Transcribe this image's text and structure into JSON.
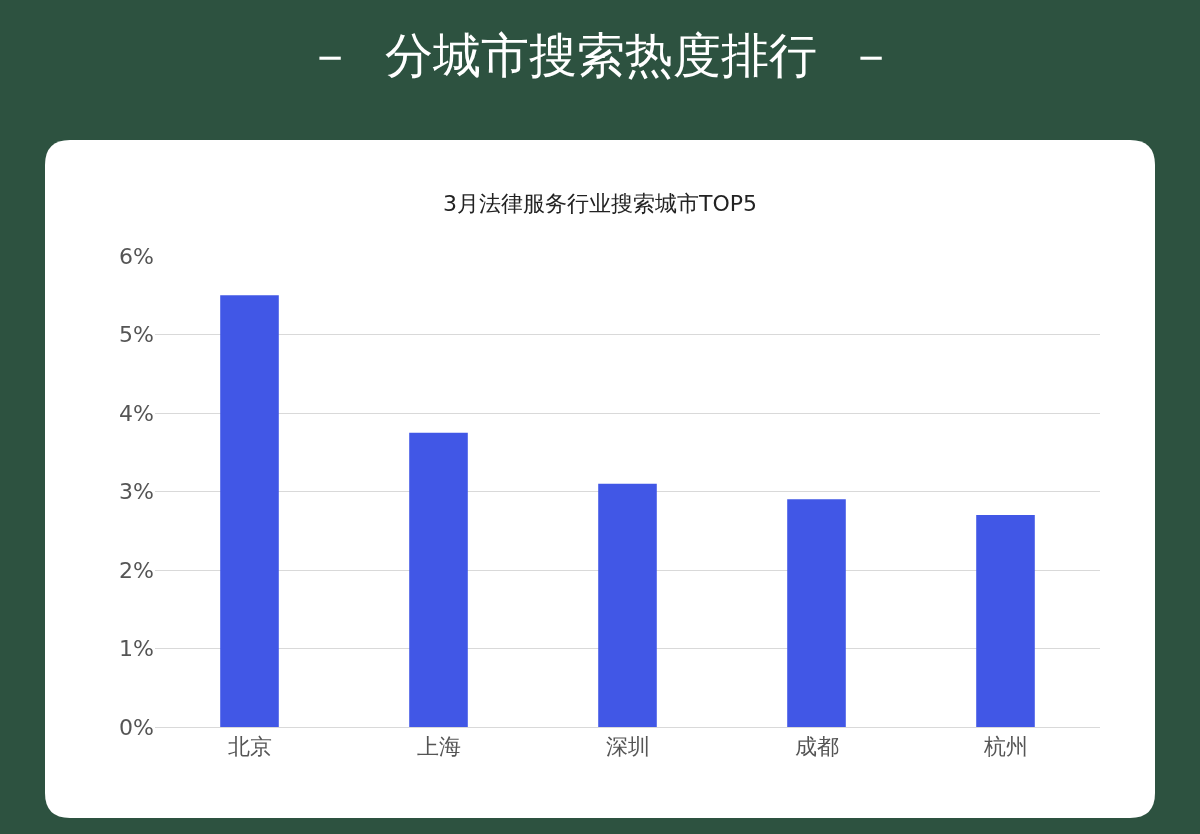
{
  "chart_data": {
    "type": "bar",
    "title": "－  分城市搜索热度排行  －",
    "subtitle": "3月法律服务行业搜索城市TOP5",
    "categories": [
      "北京",
      "上海",
      "深圳",
      "成都",
      "杭州"
    ],
    "values": [
      5.5,
      3.75,
      3.1,
      2.9,
      2.7
    ],
    "color": "#4157e6",
    "ylim": [
      0,
      6
    ],
    "yticks": [
      {
        "value": 0,
        "label": "0%"
      },
      {
        "value": 1,
        "label": "1%"
      },
      {
        "value": 2,
        "label": "2%"
      },
      {
        "value": 3,
        "label": "3%"
      },
      {
        "value": 4,
        "label": "4%"
      },
      {
        "value": 5,
        "label": "5%"
      },
      {
        "value": 6,
        "label": "6%"
      }
    ],
    "grid": "y",
    "legend": false
  }
}
